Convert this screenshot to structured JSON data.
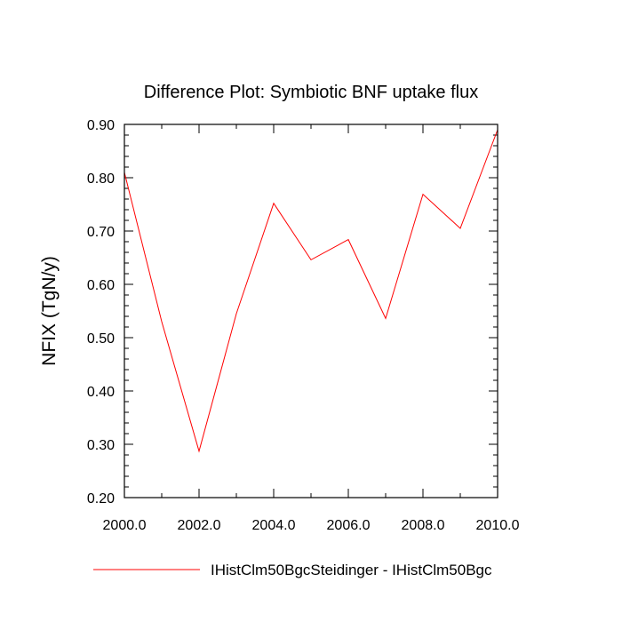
{
  "chart_data": {
    "type": "line",
    "title": "Difference Plot: Symbiotic BNF uptake flux",
    "xlabel": "",
    "ylabel": "NFIX  (TgN/y)",
    "xlim": [
      2000,
      2010
    ],
    "ylim": [
      0.2,
      0.9
    ],
    "x_ticks": [
      "2000.0",
      "2002.0",
      "2004.0",
      "2006.0",
      "2008.0",
      "2010.0"
    ],
    "y_ticks": [
      "0.20",
      "0.30",
      "0.40",
      "0.50",
      "0.60",
      "0.70",
      "0.80",
      "0.90"
    ],
    "grid": false,
    "legend_position": "bottom",
    "series": [
      {
        "name": "IHistClm50BgcSteidinger - IHistClm50Bgc",
        "color": "#ff0000",
        "x": [
          2000,
          2001,
          2002,
          2003,
          2004,
          2005,
          2006,
          2007,
          2008,
          2009,
          2010
        ],
        "values": [
          0.81,
          0.53,
          0.287,
          0.545,
          0.752,
          0.646,
          0.684,
          0.536,
          0.769,
          0.705,
          0.89
        ]
      }
    ]
  }
}
